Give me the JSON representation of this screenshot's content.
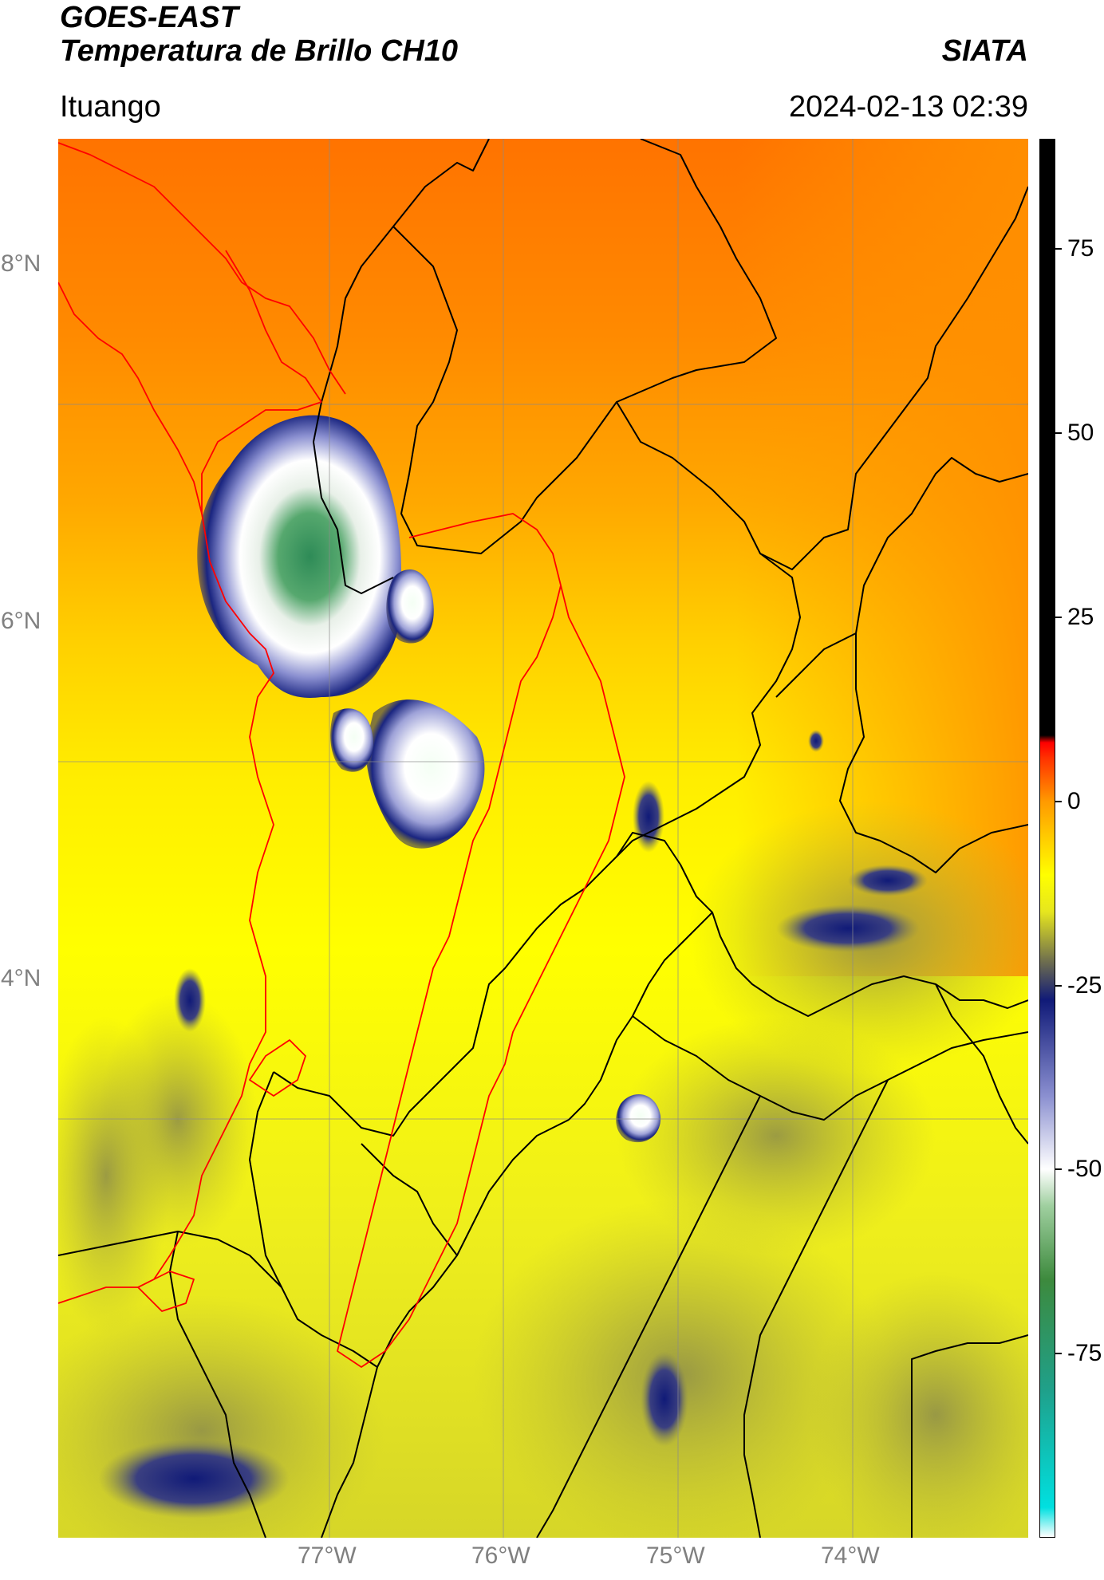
{
  "header": {
    "satellite": "GOES-EAST",
    "product": "Temperatura de Brillo CH10",
    "organization": "SIATA",
    "location": "Ituango",
    "datetime": "2024-02-13 02:39"
  },
  "map": {
    "lon_labels": [
      "77°W",
      "76°W",
      "75°W",
      "74°W"
    ],
    "lat_labels": [
      "8°N",
      "6°N",
      "4°N"
    ],
    "gridlines": true,
    "colors": {
      "warm_orange": "#ff7a00",
      "yellow": "#ffff00",
      "olive": "#a9a93c",
      "navy": "#101a78",
      "white": "#ffffff",
      "green": "#2e8b57",
      "boundary_black": "#000000",
      "boundary_red": "#ff0000"
    }
  },
  "colorbar": {
    "ticks": [
      "75",
      "50",
      "25",
      "0",
      "-25",
      "-50",
      "-75"
    ],
    "range": [
      -100,
      90
    ],
    "stops": [
      {
        "value": -100,
        "color": "#ffffff"
      },
      {
        "value": -96,
        "color": "#00e0e0"
      },
      {
        "value": -80,
        "color": "#1fa08a"
      },
      {
        "value": -65,
        "color": "#3d8a3d"
      },
      {
        "value": -55,
        "color": "#9fcf9f"
      },
      {
        "value": -50,
        "color": "#ffffff"
      },
      {
        "value": -40,
        "color": "#8a8fd0"
      },
      {
        "value": -27,
        "color": "#101a78"
      },
      {
        "value": -22,
        "color": "#6a6a50"
      },
      {
        "value": -15,
        "color": "#e6e61e"
      },
      {
        "value": -10,
        "color": "#ffff00"
      },
      {
        "value": 0,
        "color": "#ff9a00"
      },
      {
        "value": 6,
        "color": "#ff3000"
      },
      {
        "value": 8,
        "color": "#ff0000"
      },
      {
        "value": 9,
        "color": "#000000"
      },
      {
        "value": 90,
        "color": "#000000"
      }
    ]
  }
}
